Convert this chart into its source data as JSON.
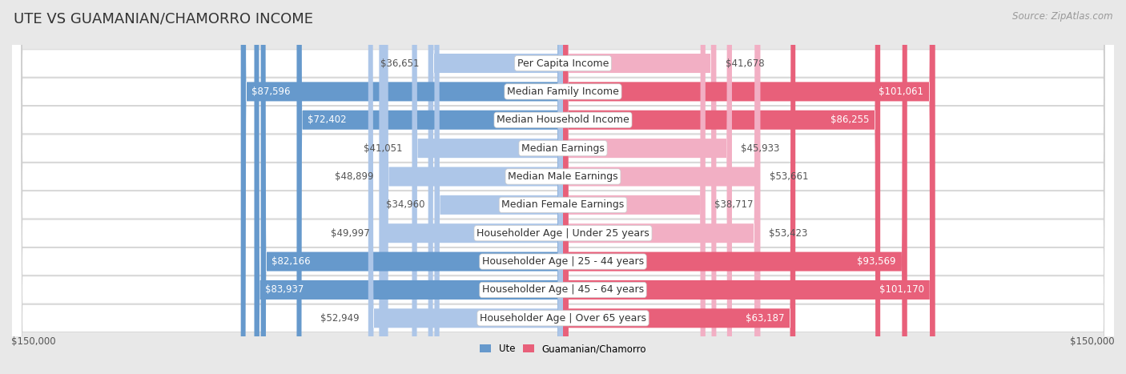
{
  "title": "UTE VS GUAMANIAN/CHAMORRO INCOME",
  "source": "Source: ZipAtlas.com",
  "categories": [
    "Per Capita Income",
    "Median Family Income",
    "Median Household Income",
    "Median Earnings",
    "Median Male Earnings",
    "Median Female Earnings",
    "Householder Age | Under 25 years",
    "Householder Age | 25 - 44 years",
    "Householder Age | 45 - 64 years",
    "Householder Age | Over 65 years"
  ],
  "ute_values": [
    36651,
    87596,
    72402,
    41051,
    48899,
    34960,
    49997,
    82166,
    83937,
    52949
  ],
  "guam_values": [
    41678,
    101061,
    86255,
    45933,
    53661,
    38717,
    53423,
    93569,
    101170,
    63187
  ],
  "ute_labels": [
    "$36,651",
    "$87,596",
    "$72,402",
    "$41,051",
    "$48,899",
    "$34,960",
    "$49,997",
    "$82,166",
    "$83,937",
    "$52,949"
  ],
  "guam_labels": [
    "$41,678",
    "$101,061",
    "$86,255",
    "$45,933",
    "$53,661",
    "$38,717",
    "$53,423",
    "$93,569",
    "$101,170",
    "$63,187"
  ],
  "ute_color_light": "#adc6e8",
  "ute_color_dark": "#6699cc",
  "guam_color_light": "#f2afc4",
  "guam_color_dark": "#e8607a",
  "max_val": 150000,
  "bg_color": "#e8e8e8",
  "row_bg": "#ffffff",
  "row_border": "#cccccc",
  "xlabel_left": "$150,000",
  "xlabel_right": "$150,000",
  "legend_ute": "Ute",
  "legend_guam": "Guamanian/Chamorro",
  "title_fontsize": 13,
  "label_fontsize": 8.5,
  "cat_fontsize": 9,
  "source_fontsize": 8.5,
  "dark_threshold": 60000
}
